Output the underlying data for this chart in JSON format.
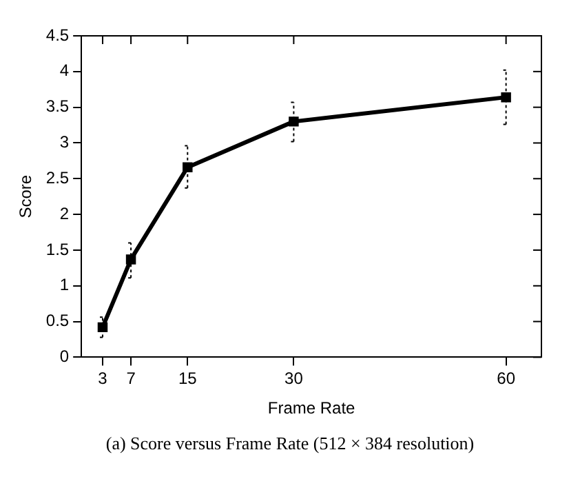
{
  "chart_data": {
    "type": "line",
    "xlabel": "Frame Rate",
    "ylabel": "Score",
    "x": [
      3,
      7,
      15,
      30,
      60
    ],
    "series": [
      {
        "color": "#000000",
        "values": [
          0.42,
          1.37,
          2.66,
          3.3,
          3.64
        ],
        "errors": [
          [
            0.28,
            0.56
          ],
          [
            1.11,
            1.6
          ],
          [
            2.37,
            2.96
          ],
          [
            3.02,
            3.57
          ],
          [
            3.26,
            4.02
          ]
        ]
      }
    ],
    "xlim": [
      0,
      65
    ],
    "xticks": [
      3,
      7,
      15,
      30,
      60
    ],
    "ylim": [
      0,
      4.5
    ],
    "yticks": [
      0,
      0.5,
      1,
      1.5,
      2,
      2.5,
      3,
      3.5,
      4,
      4.5
    ],
    "grid": false,
    "legend": false,
    "marker": "square",
    "line_style": "solid",
    "annotations": [
      "(a) Score versus Frame Rate (512 × 384 resolution)"
    ]
  }
}
